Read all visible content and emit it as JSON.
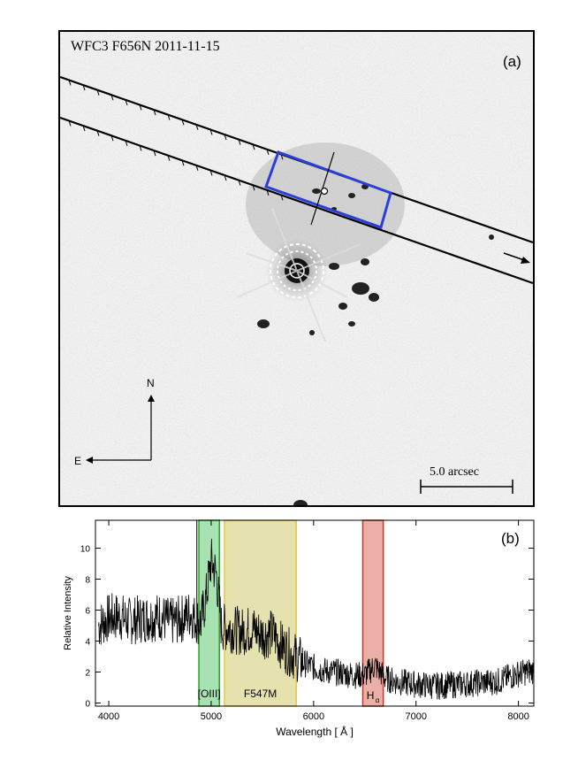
{
  "panel_a": {
    "title": "WFC3 F656N 2011-11-15",
    "label": "(a)",
    "compass_north": "N",
    "compass_east": "E",
    "scale_label": "5.0 arcsec"
  },
  "panel_b": {
    "label": "(b)"
  },
  "chart_data": {
    "type": "line",
    "title": "",
    "xlabel": "Wavelength [ Å ]",
    "ylabel": "Relative Intensity",
    "xlim": [
      3870,
      8150
    ],
    "ylim": [
      -0.2,
      11.8
    ],
    "xticks": [
      4000,
      5000,
      6000,
      7000,
      8000
    ],
    "yticks": [
      0,
      2,
      4,
      6,
      8,
      10
    ],
    "grid": false,
    "series": [
      {
        "x": [
          3900,
          4000,
          4100,
          4200,
          4300,
          4400,
          4500,
          4600,
          4700,
          4800,
          4850,
          4900,
          4950,
          5000,
          5050,
          5100,
          5200,
          5300,
          5400,
          5500,
          5600,
          5700,
          5800,
          5900,
          6000,
          6100,
          6200,
          6300,
          6400,
          6500,
          6600,
          6700,
          6800,
          7000,
          7200,
          7400,
          7600,
          7800,
          8000,
          8150
        ],
        "y": [
          5.0,
          5.5,
          5.6,
          5.3,
          5.4,
          5.5,
          5.6,
          5.2,
          5.4,
          5.8,
          5.4,
          5.2,
          6.8,
          9.2,
          8.3,
          4.9,
          4.8,
          4.6,
          4.8,
          4.4,
          4.5,
          3.6,
          3.1,
          2.6,
          2.3,
          2.1,
          2.0,
          1.9,
          1.8,
          1.8,
          2.4,
          1.6,
          1.4,
          1.2,
          1.1,
          1.2,
          1.3,
          1.4,
          1.9,
          2.1
        ]
      }
    ],
    "bands": [
      {
        "label": "[OIII]",
        "x0": 4880,
        "x1": 5080,
        "fill": "#6fcf7f",
        "stroke": "#2ca02c"
      },
      {
        "label": "F547M",
        "x0": 5130,
        "x1": 5830,
        "fill": "#d6cf7a",
        "stroke": "#e8c43a"
      },
      {
        "label": "Hα",
        "x0": 6480,
        "x1": 6680,
        "fill": "#e07a6c",
        "stroke": "#c0392b"
      }
    ],
    "band_label_texts": {
      "oiii": "[OIII]",
      "f547m": "F547M",
      "ha_main": "H",
      "ha_sub": "α"
    }
  }
}
